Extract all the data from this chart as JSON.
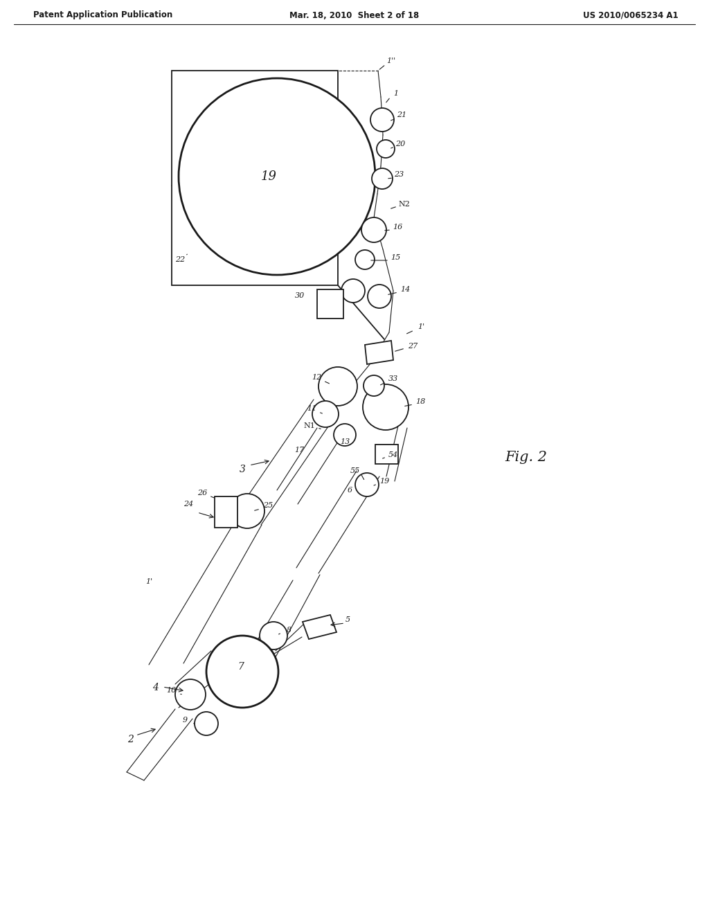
{
  "header_left": "Patent Application Publication",
  "header_mid": "Mar. 18, 2010  Sheet 2 of 18",
  "header_right": "US 2010/0065234 A1",
  "fig_label": "Fig. 2",
  "background": "#ffffff",
  "line_color": "#1a1a1a"
}
